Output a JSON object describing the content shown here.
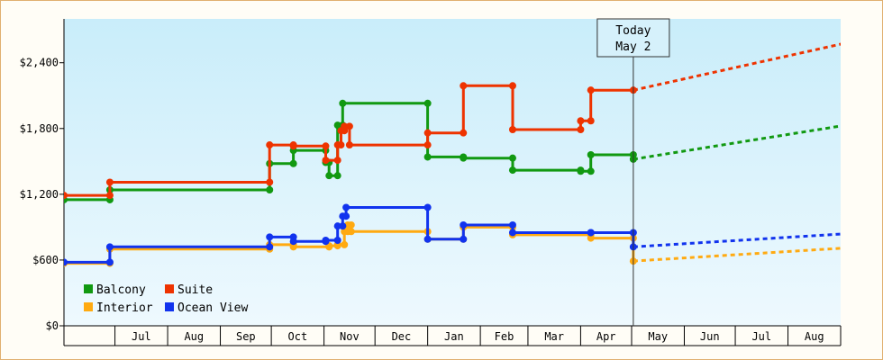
{
  "chart_data": {
    "type": "line",
    "subtype": "step",
    "title": "",
    "xlabel": "",
    "ylabel": "",
    "ylim": [
      0,
      2800
    ],
    "xlim": [
      "2020-06-01",
      "2021-09-01"
    ],
    "grid": false,
    "background": "light blue gradient",
    "legend_position": "bottom-left",
    "y_ticks": [
      "$0",
      "$600",
      "$1,200",
      "$1,800",
      "$2,400"
    ],
    "y_tick_values": [
      0,
      600,
      1200,
      1800,
      2400
    ],
    "x_ticks": [
      "Jul",
      "Aug",
      "Sep",
      "Oct",
      "Nov",
      "Dec",
      "Jan",
      "Feb",
      "Mar",
      "Apr",
      "May",
      "Jun",
      "Jul",
      "Aug"
    ],
    "x_tick_dates": [
      "2020-07-01",
      "2020-08-01",
      "2020-09-01",
      "2020-10-01",
      "2020-11-01",
      "2020-12-01",
      "2021-01-01",
      "2021-02-01",
      "2021-03-01",
      "2021-04-01",
      "2021-05-01",
      "2021-06-01",
      "2021-07-01",
      "2021-08-01"
    ],
    "today": {
      "line1": "Today",
      "line2": "May 2",
      "date": "2021-05-02"
    },
    "series": [
      {
        "name": "Balcony",
        "color": "#119911",
        "points": [
          [
            "2020-06-01",
            1150
          ],
          [
            "2020-06-28",
            1150
          ],
          [
            "2020-06-28",
            1240
          ],
          [
            "2020-09-30",
            1240
          ],
          [
            "2020-09-30",
            1480
          ],
          [
            "2020-10-14",
            1480
          ],
          [
            "2020-10-14",
            1600
          ],
          [
            "2020-11-02",
            1600
          ],
          [
            "2020-11-02",
            1490
          ],
          [
            "2020-11-04",
            1490
          ],
          [
            "2020-11-04",
            1370
          ],
          [
            "2020-11-09",
            1370
          ],
          [
            "2020-11-09",
            1830
          ],
          [
            "2020-11-12",
            1830
          ],
          [
            "2020-11-12",
            2030
          ],
          [
            "2021-01-01",
            2030
          ],
          [
            "2021-01-01",
            1540
          ],
          [
            "2021-01-22",
            1540
          ],
          [
            "2021-01-22",
            1530
          ],
          [
            "2021-02-20",
            1530
          ],
          [
            "2021-02-20",
            1420
          ],
          [
            "2021-04-01",
            1420
          ],
          [
            "2021-04-01",
            1410
          ],
          [
            "2021-04-07",
            1410
          ],
          [
            "2021-04-07",
            1560
          ],
          [
            "2021-05-02",
            1560
          ],
          [
            "2021-05-02",
            1520
          ]
        ],
        "forecast": [
          [
            "2021-05-02",
            1520
          ],
          [
            "2021-09-04",
            1830
          ]
        ]
      },
      {
        "name": "Suite",
        "color": "#ee3300",
        "points": [
          [
            "2020-06-01",
            1190
          ],
          [
            "2020-06-28",
            1190
          ],
          [
            "2020-06-28",
            1310
          ],
          [
            "2020-09-30",
            1310
          ],
          [
            "2020-09-30",
            1650
          ],
          [
            "2020-10-14",
            1650
          ],
          [
            "2020-10-14",
            1640
          ],
          [
            "2020-11-02",
            1640
          ],
          [
            "2020-11-02",
            1510
          ],
          [
            "2020-11-09",
            1510
          ],
          [
            "2020-11-09",
            1650
          ],
          [
            "2020-11-11",
            1650
          ],
          [
            "2020-11-11",
            1780
          ],
          [
            "2020-11-13",
            1780
          ],
          [
            "2020-11-13",
            1820
          ],
          [
            "2020-11-16",
            1820
          ],
          [
            "2020-11-16",
            1650
          ],
          [
            "2021-01-01",
            1650
          ],
          [
            "2021-01-01",
            1760
          ],
          [
            "2021-01-22",
            1760
          ],
          [
            "2021-01-22",
            2190
          ],
          [
            "2021-02-20",
            2190
          ],
          [
            "2021-02-20",
            1790
          ],
          [
            "2021-04-01",
            1790
          ],
          [
            "2021-04-01",
            1870
          ],
          [
            "2021-04-07",
            1870
          ],
          [
            "2021-04-07",
            2150
          ],
          [
            "2021-05-02",
            2150
          ]
        ],
        "forecast": [
          [
            "2021-05-02",
            2150
          ],
          [
            "2021-09-04",
            2580
          ]
        ]
      },
      {
        "name": "Interior",
        "color": "#ffaa11",
        "points": [
          [
            "2020-06-01",
            570
          ],
          [
            "2020-06-28",
            570
          ],
          [
            "2020-06-28",
            700
          ],
          [
            "2020-09-30",
            700
          ],
          [
            "2020-09-30",
            740
          ],
          [
            "2020-10-14",
            740
          ],
          [
            "2020-10-14",
            720
          ],
          [
            "2020-11-04",
            720
          ],
          [
            "2020-11-04",
            730
          ],
          [
            "2020-11-09",
            730
          ],
          [
            "2020-11-09",
            740
          ],
          [
            "2020-11-13",
            740
          ],
          [
            "2020-11-13",
            860
          ],
          [
            "2020-11-15",
            860
          ],
          [
            "2020-11-15",
            920
          ],
          [
            "2020-11-17",
            920
          ],
          [
            "2020-11-17",
            860
          ],
          [
            "2021-01-01",
            860
          ],
          [
            "2021-01-01",
            790
          ],
          [
            "2021-01-22",
            790
          ],
          [
            "2021-01-22",
            900
          ],
          [
            "2021-02-20",
            900
          ],
          [
            "2021-02-20",
            830
          ],
          [
            "2021-04-07",
            830
          ],
          [
            "2021-04-07",
            800
          ],
          [
            "2021-05-02",
            800
          ],
          [
            "2021-05-02",
            590
          ]
        ],
        "forecast": [
          [
            "2021-05-02",
            590
          ],
          [
            "2021-09-04",
            710
          ]
        ]
      },
      {
        "name": "Ocean View",
        "color": "#1133ee",
        "points": [
          [
            "2020-06-01",
            580
          ],
          [
            "2020-06-28",
            580
          ],
          [
            "2020-06-28",
            720
          ],
          [
            "2020-09-30",
            720
          ],
          [
            "2020-09-30",
            810
          ],
          [
            "2020-10-14",
            810
          ],
          [
            "2020-10-14",
            770
          ],
          [
            "2020-11-02",
            770
          ],
          [
            "2020-11-02",
            780
          ],
          [
            "2020-11-09",
            780
          ],
          [
            "2020-11-09",
            910
          ],
          [
            "2020-11-12",
            910
          ],
          [
            "2020-11-12",
            1000
          ],
          [
            "2020-11-14",
            1000
          ],
          [
            "2020-11-14",
            1080
          ],
          [
            "2021-01-01",
            1080
          ],
          [
            "2021-01-01",
            790
          ],
          [
            "2021-01-22",
            790
          ],
          [
            "2021-01-22",
            920
          ],
          [
            "2021-02-20",
            920
          ],
          [
            "2021-02-20",
            850
          ],
          [
            "2021-04-07",
            850
          ],
          [
            "2021-04-07",
            850
          ],
          [
            "2021-05-02",
            850
          ],
          [
            "2021-05-02",
            720
          ]
        ],
        "forecast": [
          [
            "2021-05-02",
            720
          ],
          [
            "2021-09-04",
            840
          ]
        ]
      }
    ],
    "legend": [
      {
        "label": "Balcony",
        "color": "#119911"
      },
      {
        "label": "Suite",
        "color": "#ee3300"
      },
      {
        "label": "Interior",
        "color": "#ffaa11"
      },
      {
        "label": "Ocean View",
        "color": "#1133ee"
      }
    ]
  }
}
